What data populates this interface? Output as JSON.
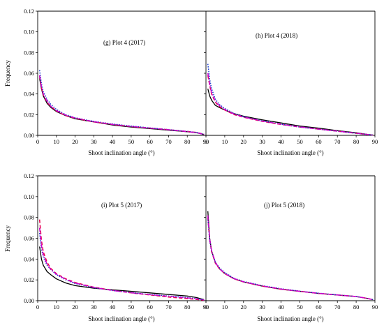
{
  "chart_data": [
    {
      "type": "line",
      "panel_label": "(g)  Plot 4 (2017)",
      "xlabel": "Shoot inclination angle (°)",
      "ylabel": "Frequency",
      "xlim": [
        0,
        90
      ],
      "ylim": [
        0,
        0.12
      ],
      "x_ticks": [
        0,
        10,
        20,
        30,
        40,
        50,
        60,
        70,
        80,
        90
      ],
      "y_ticks": [
        "0.00",
        "0.02",
        "0.04",
        "0.06",
        "0.08",
        "0.10",
        "0.12"
      ],
      "x": [
        1,
        2,
        3,
        5,
        7,
        10,
        15,
        20,
        30,
        40,
        50,
        60,
        70,
        80,
        85,
        89
      ],
      "series": [
        {
          "color": "#000000",
          "dash": "solid",
          "values": [
            0.055,
            0.045,
            0.038,
            0.031,
            0.027,
            0.023,
            0.019,
            0.016,
            0.013,
            0.01,
            0.008,
            0.0065,
            0.005,
            0.0035,
            0.0025,
            0.0008
          ]
        },
        {
          "color": "#e8004c",
          "dash": "dash",
          "values": [
            0.057,
            0.046,
            0.039,
            0.032,
            0.028,
            0.0235,
            0.019,
            0.0165,
            0.013,
            0.0105,
            0.0085,
            0.007,
            0.0055,
            0.0038,
            0.0028,
            0.001
          ]
        },
        {
          "color": "#1c3fd0",
          "dash": "dot",
          "values": [
            0.063,
            0.05,
            0.042,
            0.035,
            0.03,
            0.025,
            0.02,
            0.017,
            0.0135,
            0.011,
            0.009,
            0.0072,
            0.0055,
            0.0038,
            0.0028,
            0.001
          ]
        },
        {
          "color": "#cc00cc",
          "dash": "dashdot",
          "values": [
            0.058,
            0.047,
            0.04,
            0.033,
            0.028,
            0.024,
            0.0195,
            0.0168,
            0.0132,
            0.0106,
            0.0086,
            0.007,
            0.0054,
            0.0036,
            0.0026,
            0.0009
          ]
        }
      ]
    },
    {
      "type": "line",
      "panel_label": "(h)  Plot 4 (2018)",
      "xlabel": "Shoot inclination angle (°)",
      "ylabel": "",
      "xlim": [
        0,
        90
      ],
      "ylim": [
        0,
        0.12
      ],
      "x_ticks": [
        0,
        10,
        20,
        30,
        40,
        50,
        60,
        70,
        80,
        90
      ],
      "y_ticks": [],
      "x": [
        1,
        2,
        3,
        5,
        7,
        10,
        15,
        20,
        30,
        40,
        50,
        60,
        70,
        80,
        85,
        89
      ],
      "series": [
        {
          "color": "#000000",
          "dash": "solid",
          "values": [
            0.045,
            0.038,
            0.034,
            0.029,
            0.027,
            0.0245,
            0.021,
            0.0185,
            0.015,
            0.012,
            0.009,
            0.007,
            0.0045,
            0.0025,
            0.0012,
            0.0003
          ]
        },
        {
          "color": "#e8004c",
          "dash": "dash",
          "values": [
            0.058,
            0.048,
            0.04,
            0.032,
            0.028,
            0.0245,
            0.02,
            0.0175,
            0.0135,
            0.0105,
            0.008,
            0.006,
            0.004,
            0.002,
            0.001,
            0.0002
          ]
        },
        {
          "color": "#1c3fd0",
          "dash": "dot",
          "values": [
            0.069,
            0.054,
            0.045,
            0.035,
            0.03,
            0.026,
            0.021,
            0.018,
            0.014,
            0.0108,
            0.008,
            0.006,
            0.004,
            0.002,
            0.001,
            0.0002
          ]
        },
        {
          "color": "#cc00cc",
          "dash": "dashdot",
          "values": [
            0.06,
            0.049,
            0.041,
            0.033,
            0.029,
            0.025,
            0.0205,
            0.0178,
            0.0138,
            0.0107,
            0.0082,
            0.0061,
            0.0041,
            0.0021,
            0.0011,
            0.0002
          ]
        }
      ]
    },
    {
      "type": "line",
      "panel_label": "(i)   Plot 5 (2017)",
      "xlabel": "Shoot inclination angle (°)",
      "ylabel": "Frequency",
      "xlim": [
        0,
        90
      ],
      "ylim": [
        0,
        0.12
      ],
      "x_ticks": [
        0,
        10,
        20,
        30,
        40,
        50,
        60,
        70,
        80,
        90
      ],
      "y_ticks": [
        "0.00",
        "0.02",
        "0.04",
        "0.06",
        "0.08",
        "0.10",
        "0.12"
      ],
      "x": [
        1,
        2,
        3,
        5,
        7,
        10,
        15,
        20,
        30,
        40,
        50,
        60,
        70,
        80,
        85,
        89
      ],
      "series": [
        {
          "color": "#000000",
          "dash": "solid",
          "values": [
            0.052,
            0.04,
            0.034,
            0.028,
            0.025,
            0.021,
            0.017,
            0.0145,
            0.012,
            0.0105,
            0.009,
            0.0075,
            0.006,
            0.0045,
            0.003,
            0.001
          ]
        },
        {
          "color": "#e8004c",
          "dash": "dash",
          "values": [
            0.078,
            0.058,
            0.047,
            0.037,
            0.031,
            0.026,
            0.021,
            0.0175,
            0.013,
            0.01,
            0.0075,
            0.0055,
            0.0035,
            0.002,
            0.0012,
            0.0005
          ]
        },
        {
          "color": "#1c3fd0",
          "dash": "dot",
          "values": [
            0.065,
            0.05,
            0.042,
            0.034,
            0.03,
            0.025,
            0.02,
            0.0165,
            0.0125,
            0.0098,
            0.0078,
            0.006,
            0.0045,
            0.003,
            0.002,
            0.0008
          ]
        },
        {
          "color": "#cc00cc",
          "dash": "dashdot",
          "values": [
            0.07,
            0.053,
            0.044,
            0.035,
            0.03,
            0.0255,
            0.0205,
            0.017,
            0.0128,
            0.0098,
            0.0076,
            0.0058,
            0.0042,
            0.0027,
            0.0018,
            0.0007
          ]
        }
      ]
    },
    {
      "type": "line",
      "panel_label": "(j)   Plot 5 (2018)",
      "xlabel": "Shoot inclination angle (°)",
      "ylabel": "",
      "xlim": [
        0,
        90
      ],
      "ylim": [
        0,
        0.12
      ],
      "x_ticks": [
        0,
        10,
        20,
        30,
        40,
        50,
        60,
        70,
        80,
        90
      ],
      "y_ticks": [],
      "x": [
        1,
        2,
        3,
        5,
        7,
        10,
        15,
        20,
        30,
        40,
        50,
        60,
        70,
        80,
        85,
        89
      ],
      "series": [
        {
          "color": "#000000",
          "dash": "solid",
          "values": [
            0.086,
            0.06,
            0.048,
            0.037,
            0.031,
            0.026,
            0.021,
            0.018,
            0.014,
            0.011,
            0.009,
            0.007,
            0.0055,
            0.004,
            0.0025,
            0.001
          ]
        },
        {
          "color": "#e8004c",
          "dash": "dash",
          "values": [
            0.08,
            0.058,
            0.047,
            0.036,
            0.031,
            0.026,
            0.021,
            0.018,
            0.014,
            0.011,
            0.009,
            0.007,
            0.0055,
            0.004,
            0.0025,
            0.001
          ]
        },
        {
          "color": "#1c3fd0",
          "dash": "dot",
          "values": [
            0.078,
            0.057,
            0.047,
            0.037,
            0.032,
            0.027,
            0.0215,
            0.0185,
            0.0145,
            0.0115,
            0.0092,
            0.0072,
            0.0056,
            0.004,
            0.0025,
            0.001
          ]
        },
        {
          "color": "#cc00cc",
          "dash": "dashdot",
          "values": [
            0.082,
            0.059,
            0.048,
            0.037,
            0.031,
            0.0262,
            0.0212,
            0.0182,
            0.0142,
            0.0112,
            0.009,
            0.0071,
            0.0055,
            0.004,
            0.0025,
            0.001
          ]
        }
      ]
    }
  ]
}
